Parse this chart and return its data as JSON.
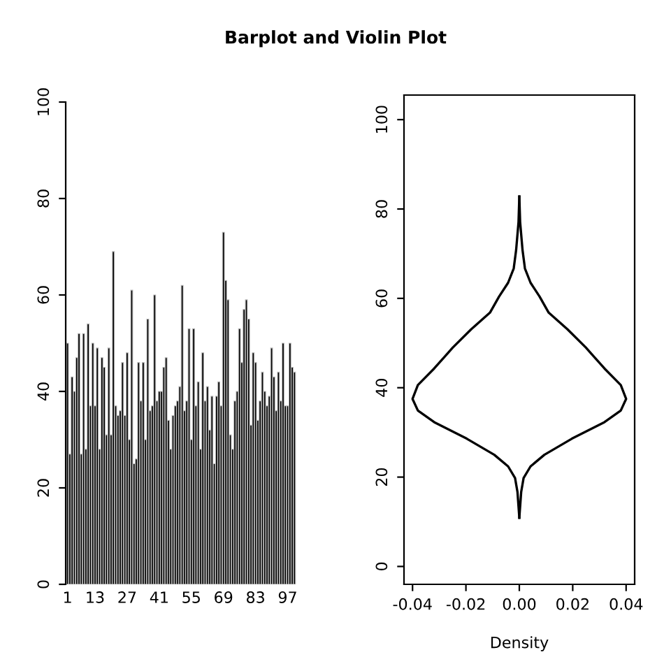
{
  "chart_data": [
    {
      "type": "bar",
      "title": "Barplot and Violin Plot",
      "color": "#000000",
      "categories": [
        "1",
        null,
        null,
        null,
        null,
        null,
        null,
        null,
        null,
        null,
        null,
        null,
        "13",
        null,
        null,
        null,
        null,
        null,
        null,
        null,
        null,
        null,
        null,
        null,
        null,
        null,
        "27",
        null,
        null,
        null,
        null,
        null,
        null,
        null,
        null,
        null,
        null,
        null,
        null,
        null,
        "41",
        null,
        null,
        null,
        null,
        null,
        null,
        null,
        null,
        null,
        null,
        null,
        null,
        null,
        "55",
        null,
        null,
        null,
        null,
        null,
        null,
        null,
        null,
        null,
        null,
        null,
        null,
        null,
        "69",
        null,
        null,
        null,
        null,
        null,
        null,
        null,
        null,
        null,
        null,
        null,
        null,
        null,
        "83",
        null,
        null,
        null,
        null,
        null,
        null,
        null,
        null,
        null,
        null,
        null,
        null,
        null,
        "97",
        null,
        null,
        null
      ],
      "values": [
        50,
        27,
        43,
        40,
        47,
        52,
        27,
        52,
        28,
        54,
        37,
        50,
        37,
        49,
        28,
        47,
        45,
        31,
        49,
        31,
        69,
        37,
        35,
        36,
        46,
        35,
        48,
        30,
        61,
        25,
        26,
        46,
        38,
        46,
        30,
        55,
        36,
        37,
        60,
        38,
        40,
        40,
        45,
        47,
        34,
        28,
        35,
        37,
        38,
        41,
        62,
        36,
        38,
        53,
        30,
        53,
        37,
        42,
        28,
        48,
        38,
        41,
        32,
        39,
        25,
        39,
        42,
        37,
        73,
        63,
        59,
        31,
        28,
        38,
        40,
        53,
        46,
        57,
        59,
        55,
        33,
        48,
        46,
        34,
        38,
        44,
        40,
        37,
        39,
        49,
        43,
        36,
        44,
        38,
        50,
        37,
        37,
        50,
        45,
        44
      ],
      "ylim": [
        0,
        100
      ],
      "yticks": [
        0,
        20,
        40,
        60,
        80,
        100
      ],
      "grid": false
    },
    {
      "type": "line",
      "xlabel": "Density",
      "color": "#000000",
      "series": [
        {
          "color": "#000000",
          "x": [
            0,
            0.0007,
            0.0016,
            0.0042,
            0.0094,
            0.0197,
            0.0319,
            0.038,
            0.04,
            0.038,
            0.0319,
            0.0249,
            0.018,
            0.011,
            0.0076,
            0.0042,
            0.0021,
            0.0012,
            0.0003,
            0
          ],
          "values": [
            10.9,
            16.7,
            19.8,
            22.4,
            25,
            28.6,
            32.3,
            34.9,
            37.5,
            40.6,
            44.3,
            49,
            53.1,
            56.8,
            60.4,
            63.5,
            66.7,
            70.8,
            77.1,
            82.8
          ]
        },
        {
          "color": "#000000",
          "x": [
            0,
            -0.0007,
            -0.0016,
            -0.0042,
            -0.0094,
            -0.0197,
            -0.0319,
            -0.038,
            -0.04,
            -0.038,
            -0.0319,
            -0.0249,
            -0.018,
            -0.011,
            -0.0076,
            -0.0042,
            -0.0021,
            -0.0012,
            -0.0003,
            0
          ],
          "values": [
            10.9,
            16.7,
            19.8,
            22.4,
            25,
            28.6,
            32.3,
            34.9,
            37.5,
            40.6,
            44.3,
            49,
            53.1,
            56.8,
            60.4,
            63.5,
            66.7,
            70.8,
            77.1,
            82.8
          ]
        }
      ],
      "xlim": [
        -0.0432,
        0.0432
      ],
      "xticks": [
        -0.04,
        -0.02,
        {
          "value": 0,
          "label": "0.00"
        },
        0.02,
        0.04
      ],
      "ylim": [
        -4,
        105.5
      ],
      "yticks": [
        0,
        20,
        40,
        60,
        80,
        100
      ],
      "grid": false,
      "marker": "none",
      "line_style": "solid"
    }
  ]
}
